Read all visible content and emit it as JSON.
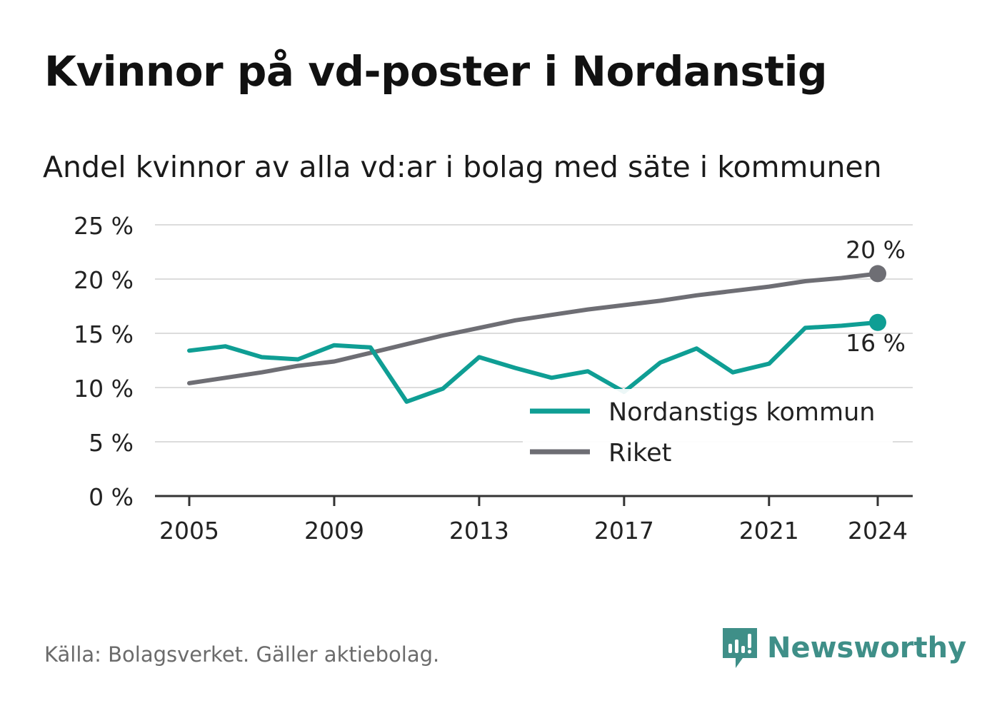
{
  "title": "Kvinnor på vd-poster i Nordanstig",
  "subtitle": "Andel kvinnor av alla vd:ar i bolag med säte i kommunen",
  "source": "Källa: Bolagsverket. Gäller aktiebolag.",
  "brand": "Newsworthy",
  "colors": {
    "nordanstig": "#0f9e94",
    "riket": "#6e6e74",
    "brand": "#3f8f88"
  },
  "chart_data": {
    "type": "line",
    "x": [
      2005,
      2006,
      2007,
      2008,
      2009,
      2010,
      2011,
      2012,
      2013,
      2014,
      2015,
      2016,
      2017,
      2018,
      2019,
      2020,
      2021,
      2022,
      2023,
      2024
    ],
    "series": [
      {
        "name": "Nordanstigs kommun",
        "color": "#0f9e94",
        "values": [
          13.4,
          13.8,
          12.8,
          12.6,
          13.9,
          13.7,
          8.7,
          9.9,
          12.8,
          11.8,
          10.9,
          11.5,
          9.6,
          12.3,
          13.6,
          11.4,
          12.2,
          15.5,
          15.7,
          16.0
        ]
      },
      {
        "name": "Riket",
        "color": "#6e6e74",
        "values": [
          10.4,
          10.9,
          11.4,
          12.0,
          12.4,
          13.2,
          14.0,
          14.8,
          15.5,
          16.2,
          16.7,
          17.2,
          17.6,
          18.0,
          18.5,
          18.9,
          19.3,
          19.8,
          20.1,
          20.5
        ]
      }
    ],
    "end_labels": {
      "Riket": "20 %",
      "Nordanstigs kommun": "16 %"
    },
    "ylim": [
      0,
      25
    ],
    "yticks": [
      0,
      5,
      10,
      15,
      20,
      25
    ],
    "ytick_labels": [
      "0 %",
      "5 %",
      "10 %",
      "15 %",
      "20 %",
      "25 %"
    ],
    "xticks": [
      2005,
      2009,
      2013,
      2017,
      2021,
      2024
    ],
    "xtick_labels": [
      "2005",
      "2009",
      "2013",
      "2017",
      "2021",
      "2024"
    ],
    "legend": [
      "Nordanstigs kommun",
      "Riket"
    ],
    "legend_position": "bottom-right",
    "grid": true,
    "xlabel": "",
    "ylabel": ""
  }
}
